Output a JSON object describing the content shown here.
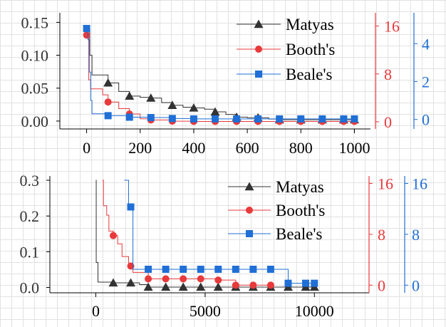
{
  "colors": {
    "matyas": "#333333",
    "booths": "#e8393b",
    "beales": "#1f6fd6",
    "axis": "#000000",
    "grid": "#e2e2e2"
  },
  "chart_data": [
    {
      "type": "line",
      "step": true,
      "x_ticks": [
        "0",
        "200",
        "400",
        "600",
        "800",
        "1000"
      ],
      "xlim": [
        -100,
        1060
      ],
      "left_axis": {
        "ticks": [
          "0.00",
          "0.05",
          "0.10",
          "0.15"
        ],
        "ylim": [
          -0.012,
          0.158
        ]
      },
      "right_axis_1": {
        "color": "#e8393b",
        "ticks": [
          "0",
          "8",
          "16"
        ],
        "ylim": [
          -1.2,
          17.5
        ]
      },
      "right_axis_2": {
        "color": "#1f6fd6",
        "ticks": [
          "0",
          "2",
          "4"
        ],
        "ylim": [
          -0.5,
          5.4
        ]
      },
      "legend": {
        "position": "top-right",
        "entries": [
          "Matyas",
          "Booth's",
          "Beale's"
        ]
      },
      "series": [
        {
          "name": "Matyas",
          "axis": "left",
          "marker": "triangle",
          "x": [
            0,
            12,
            20,
            80,
            120,
            160,
            200,
            240,
            280,
            320,
            360,
            400,
            440,
            480,
            520,
            560,
            600,
            640,
            680,
            720,
            800,
            880,
            960,
            1000
          ],
          "y": [
            0.14,
            0.1,
            0.07,
            0.058,
            0.045,
            0.038,
            0.036,
            0.035,
            0.028,
            0.024,
            0.021,
            0.02,
            0.018,
            0.014,
            0.01,
            0.006,
            0.005,
            0.005,
            0.003,
            0.002,
            0.002,
            0.002,
            0.002,
            0.002
          ],
          "markers_x": [
            80,
            160,
            240,
            320,
            400,
            480,
            560,
            640,
            720,
            800,
            880,
            960,
            1000
          ]
        },
        {
          "name": "Booth's",
          "axis": "right_1",
          "marker": "circle",
          "x": [
            0,
            8,
            15,
            60,
            80,
            120,
            160,
            200,
            240,
            320,
            400,
            480,
            560,
            640,
            720,
            800,
            880,
            960,
            1000
          ],
          "y": [
            14.5,
            7.0,
            5.5,
            4.5,
            3.3,
            2.2,
            1.3,
            0.5,
            0.3,
            0.1,
            0.05,
            0.05,
            0.05,
            0.05,
            0.05,
            0.05,
            0.05,
            0.05,
            0.05
          ],
          "markers_x": [
            0,
            80,
            160,
            240,
            320,
            400,
            480,
            560,
            640,
            720,
            800,
            880,
            960,
            1000
          ]
        },
        {
          "name": "Beale's",
          "axis": "right_2",
          "marker": "square",
          "x": [
            0,
            5,
            10,
            15,
            20,
            80,
            160,
            240,
            320,
            400,
            480,
            560,
            640,
            720,
            800,
            880,
            960,
            1000
          ],
          "y": [
            4.8,
            4.2,
            2.5,
            1.0,
            0.3,
            0.2,
            0.12,
            0.1,
            0.05,
            0.03,
            0.03,
            0.03,
            0.03,
            0.03,
            0.03,
            0.03,
            0.03,
            0.03
          ],
          "markers_x": [
            0,
            80,
            160,
            240,
            320,
            400,
            480,
            560,
            640,
            720,
            800,
            880,
            960,
            1000
          ]
        }
      ]
    },
    {
      "type": "line",
      "step": true,
      "x_ticks": [
        "0",
        "5000",
        "10000"
      ],
      "xlim": [
        -2100,
        12500
      ],
      "left_axis": {
        "ticks": [
          "0.0",
          "0.1",
          "0.2",
          "0.3"
        ],
        "ylim": [
          -0.015,
          0.3
        ]
      },
      "right_axis_1": {
        "color": "#e8393b",
        "ticks": [
          "0",
          "8",
          "16"
        ],
        "ylim": [
          -1.2,
          16.5
        ]
      },
      "right_axis_2": {
        "color": "#1f6fd6",
        "ticks": [
          "0",
          "8",
          "16"
        ],
        "ylim": [
          -1.2,
          16.5
        ]
      },
      "legend": {
        "position": "top-right",
        "entries": [
          "Matyas",
          "Booth's",
          "Beale's"
        ]
      },
      "series": [
        {
          "name": "Matyas",
          "axis": "left",
          "marker": "triangle",
          "x": [
            0,
            20,
            100,
            800,
            1200,
            1500,
            2000,
            2400,
            10000
          ],
          "y": [
            0.3,
            0.07,
            0.015,
            0.013,
            0.013,
            0.013,
            0.008,
            0.001,
            0.001
          ],
          "markers_x": [
            800,
            1600,
            2400,
            3200,
            4000,
            4800,
            5600,
            6400,
            7200,
            8000,
            8800,
            9600,
            10000
          ]
        },
        {
          "name": "Booth's",
          "axis": "right_1",
          "marker": "circle",
          "x": [
            300,
            350,
            500,
            600,
            800,
            1000,
            1200,
            1500,
            1700,
            2400,
            3200,
            4000,
            4800,
            5600,
            6200,
            6400,
            7200,
            8000
          ],
          "y": [
            16.5,
            12.5,
            11.0,
            8.5,
            7.8,
            6.5,
            4.5,
            3.0,
            2.0,
            1.0,
            1.0,
            1.0,
            1.0,
            0.8,
            0.8,
            0.0,
            0.0,
            0.0
          ],
          "markers_x": [
            800,
            1600,
            2400,
            3200,
            4000,
            4800,
            5600,
            6400,
            7200,
            8000
          ]
        },
        {
          "name": "Beale's",
          "axis": "right_2",
          "marker": "square",
          "x": [
            1300,
            1500,
            1700,
            8800,
            9600,
            10000
          ],
          "y": [
            16.5,
            12.3,
            2.5,
            0.3,
            0.3,
            0.3
          ],
          "markers_x": [
            1600,
            2400,
            3200,
            4000,
            4800,
            5600,
            6400,
            7200,
            8000,
            8800,
            9600,
            10000
          ]
        }
      ]
    }
  ]
}
